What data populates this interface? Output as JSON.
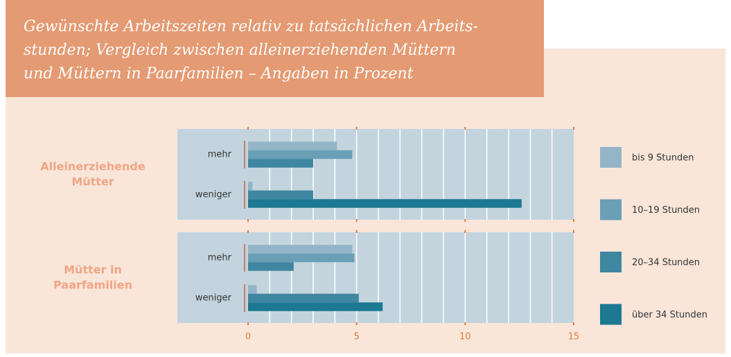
{
  "chart_data": {
    "type": "bar",
    "orientation": "horizontal",
    "title": [
      "Gewünschte Arbeitszeiten relativ zu tatsächlichen Arbeits-",
      "stunden; Vergleich zwischen alleinerziehenden Müttern",
      "und Müttern in Paarfamilien – Angaben in Prozent"
    ],
    "categories": [
      "mehr",
      "weniger"
    ],
    "series": [
      {
        "name": "bis 9 Stunden",
        "color": "#93b5c7"
      },
      {
        "name": "10–19 Stunden",
        "color": "#6a9fb6"
      },
      {
        "name": "20–34 Stunden",
        "color": "#3f86a1"
      },
      {
        "name": "über 34 Stunden",
        "color": "#1d7891"
      }
    ],
    "panels": [
      {
        "label": [
          "Alleinerziehende",
          "Mütter"
        ],
        "values": [
          [
            4.1,
            0.2
          ],
          [
            4.8,
            0
          ],
          [
            3.0,
            3.0
          ],
          [
            0,
            12.6
          ]
        ]
      },
      {
        "label": [
          "Mütter in",
          "Paarfamilien"
        ],
        "values": [
          [
            4.8,
            0.4
          ],
          [
            4.9,
            0
          ],
          [
            2.1,
            5.1
          ],
          [
            0,
            6.2
          ]
        ]
      }
    ],
    "xlim": [
      0,
      15
    ],
    "xticks": [
      0,
      5,
      10,
      15
    ],
    "xgrid": [
      1,
      2,
      3,
      4,
      5,
      6,
      7,
      8,
      9,
      10,
      11,
      12,
      13,
      14
    ]
  }
}
